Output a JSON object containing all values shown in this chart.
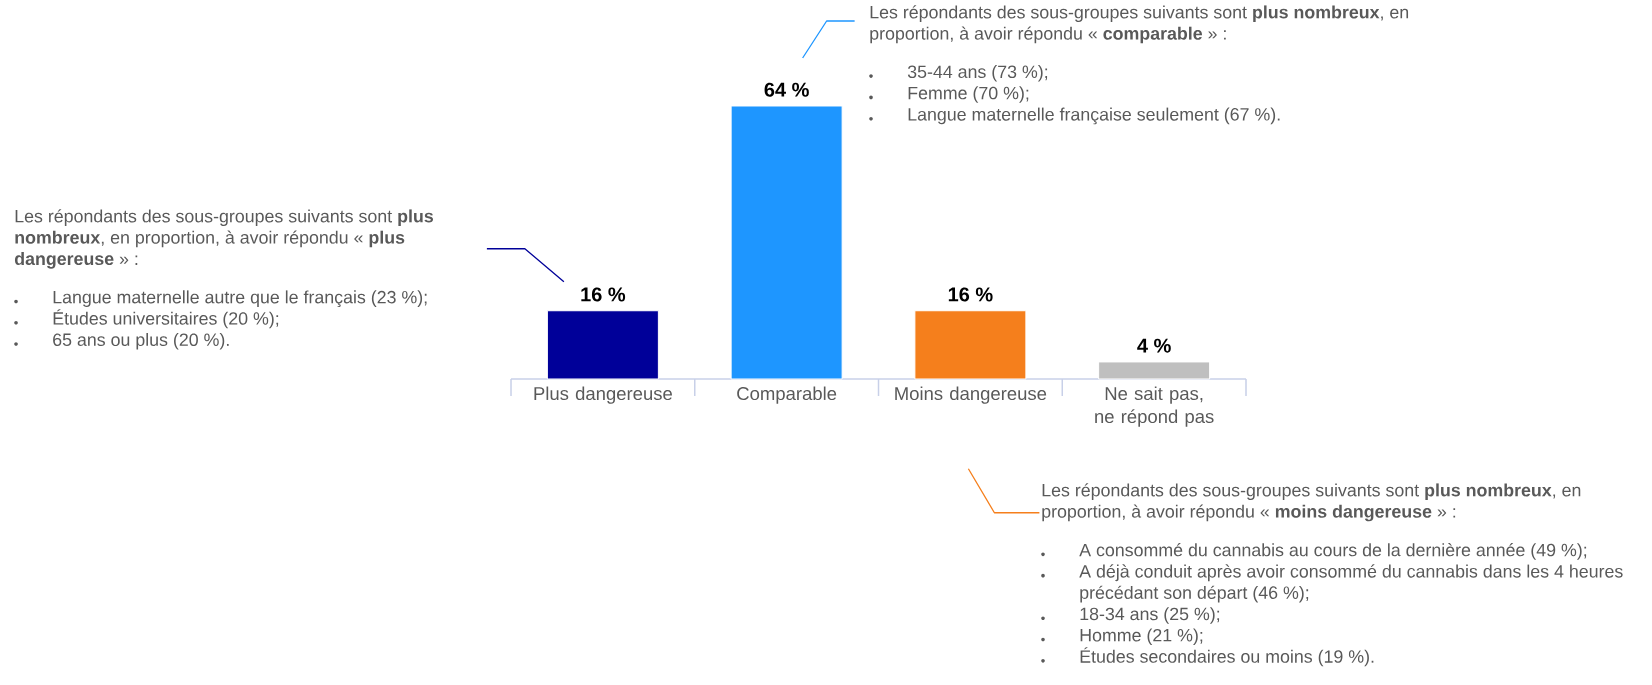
{
  "chart_data": {
    "type": "bar",
    "categories": [
      "Plus dangereuse",
      "Comparable",
      "Moins dangereuse",
      "Ne sait pas, ne répond pas"
    ],
    "values": [
      16,
      64,
      16,
      4
    ],
    "colors": [
      "#000099",
      "#1e96ff",
      "#f57f1c",
      "#bfbfbf"
    ],
    "value_labels": [
      "16 %",
      "64 %",
      "16 %",
      "4 %"
    ],
    "annotations": [
      "Les répondants des sous-groupes suivants sont **plus nombreux**, en proportion, à avoir répondu « **plus dangereuse** » :",
      "Langue maternelle autre que le français (23 %);",
      "Études universitaires (20 %);",
      "65 ans ou plus (20 %).",
      "Les répondants des sous-groupes suivants sont **plus nombreux**, en proportion, à avoir répondu « **comparable** » :",
      "35-44 ans (73 %);",
      "Femme (70 %);",
      "Langue maternelle française seulement (67 %).",
      "Les répondants des sous-groupes suivants sont **plus nombreux**, en proportion, à avoir répondu « **moins dangereuse** » :",
      "A consommé du cannabis au cours de la dernière année (49 %);",
      "A déjà conduit après avoir consommé du cannabis dans les 4 heures précédant son départ (46 %);",
      "18-34 ans (25 %);",
      "Homme (21 %);",
      "Études secondaires ou moins (19 %)."
    ]
  }
}
